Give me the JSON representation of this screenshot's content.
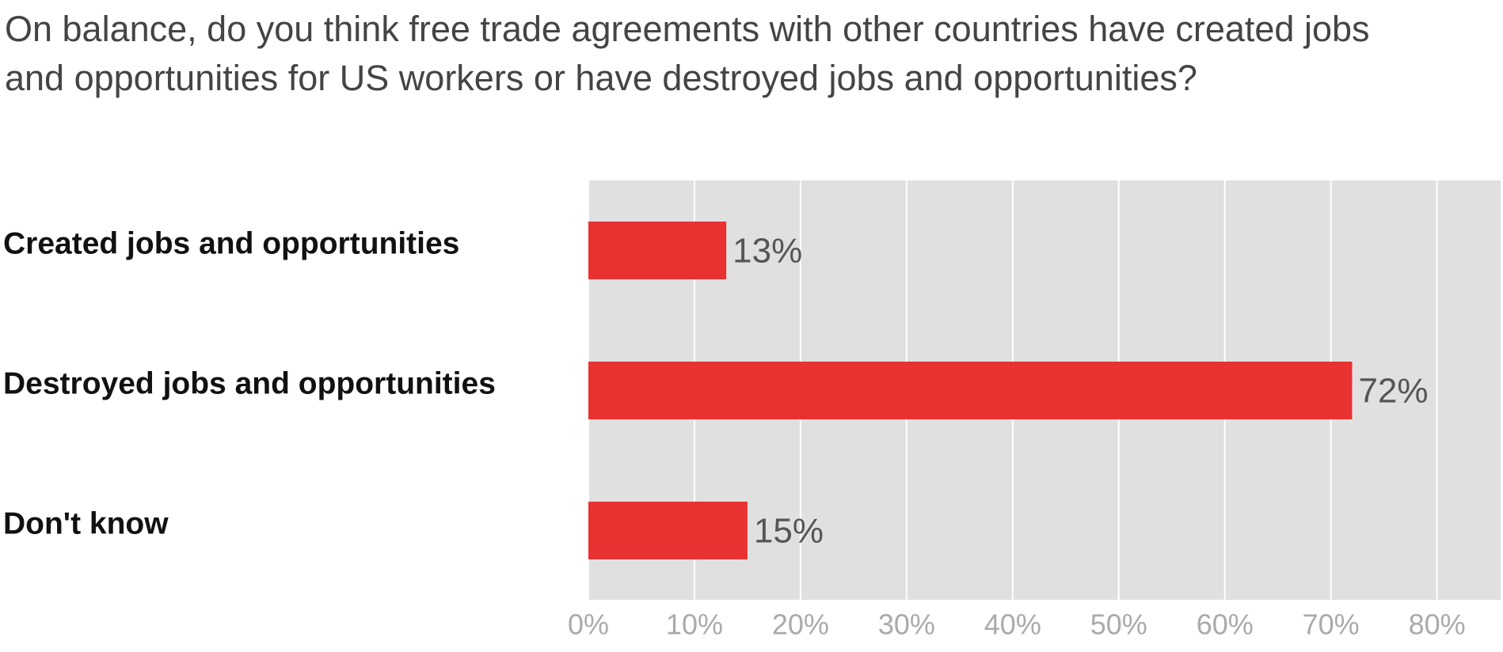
{
  "chart_data": {
    "type": "hbar",
    "title": "On balance, do you think free trade agreements with other countries have created jobs and opportunities for US workers or have destroyed jobs and opportunities?",
    "categories": [
      "Created jobs and opportunities",
      "Destroyed jobs and opportunities",
      "Don't know"
    ],
    "values": [
      13,
      72,
      15
    ],
    "value_labels": [
      "13%",
      "72%",
      "15%"
    ],
    "color": "#e83131",
    "xlim": [
      0,
      86
    ],
    "xticks": [
      {
        "value": 0,
        "label": "0%"
      },
      {
        "value": 10,
        "label": "10%"
      },
      {
        "value": 20,
        "label": "20%"
      },
      {
        "value": 30,
        "label": "30%"
      },
      {
        "value": 40,
        "label": "40%"
      },
      {
        "value": 50,
        "label": "50%"
      },
      {
        "value": 60,
        "label": "60%"
      },
      {
        "value": 70,
        "label": "70%"
      },
      {
        "value": 80,
        "label": "80%"
      }
    ],
    "grid": true
  }
}
